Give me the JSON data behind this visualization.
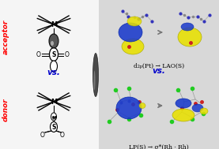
{
  "bg_color": "#d8d8d8",
  "left_bg": "#f5f5f5",
  "right_bg": "#d8d8d8",
  "acceptor_label": "acceptor",
  "donor_label": "donor",
  "vs_left": "vs.",
  "vs_right": "vs.",
  "top_right_title": "LP(S) → σ*(Rh · Rh)",
  "bottom_right_title": "d₂ₚ(Pt) → LAO(S)",
  "red": "#ff0000",
  "blue_vs": "#0000cc",
  "orbital_blue": "#1a3acc",
  "orbital_yellow": "#e8e000",
  "divider_dark": "#444444",
  "divider_mid": "#888888",
  "green_atom": "#22cc22",
  "red_atom": "#cc2222",
  "grey_atom": "#aaaaaa",
  "blue_atom": "#3333cc",
  "white": "#ffffff",
  "black": "#000000"
}
